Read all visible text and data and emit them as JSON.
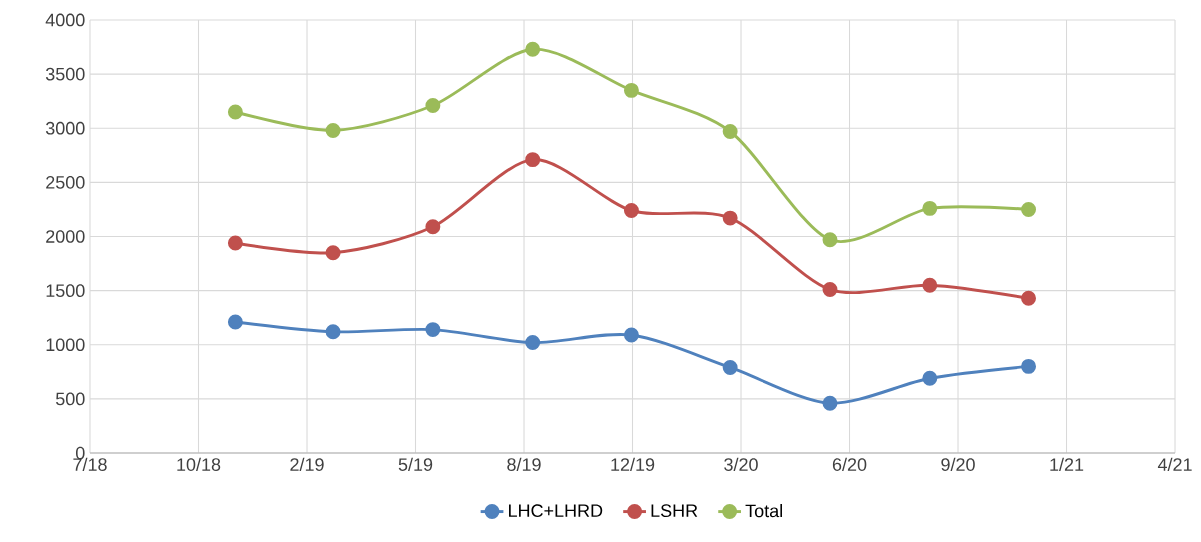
{
  "chart_data": {
    "type": "line",
    "x": [
      "2018-12-01",
      "2019-03-01",
      "2019-06-01",
      "2019-09-01",
      "2019-12-01",
      "2020-03-01",
      "2020-06-01",
      "2020-09-01",
      "2020-12-01"
    ],
    "series": [
      {
        "name": "LHC+LHRD",
        "color": "#4f81bd",
        "values": [
          1210,
          1120,
          1140,
          1020,
          1090,
          790,
          460,
          690,
          800
        ]
      },
      {
        "name": "LSHR",
        "color": "#c0504d",
        "values": [
          1940,
          1850,
          2090,
          2710,
          2240,
          2170,
          1510,
          1550,
          1430
        ]
      },
      {
        "name": "Total",
        "color": "#9bbb59",
        "values": [
          3150,
          2980,
          3210,
          3730,
          3350,
          2970,
          1970,
          2260,
          2250
        ]
      }
    ],
    "xlim": [
      "2018-07-20",
      "2021-04-15"
    ],
    "xticks": [
      {
        "value": "2018-07-20",
        "label": "7/18"
      },
      {
        "value": "2018-10-28",
        "label": "10/18"
      },
      {
        "value": "2019-02-05",
        "label": "2/19"
      },
      {
        "value": "2019-05-16",
        "label": "5/19"
      },
      {
        "value": "2019-08-24",
        "label": "8/19"
      },
      {
        "value": "2019-12-02",
        "label": "12/19"
      },
      {
        "value": "2020-03-11",
        "label": "3/20"
      },
      {
        "value": "2020-06-19",
        "label": "6/20"
      },
      {
        "value": "2020-09-27",
        "label": "9/20"
      },
      {
        "value": "2021-01-05",
        "label": "1/21"
      },
      {
        "value": "2021-04-15",
        "label": "4/21"
      }
    ],
    "ylim": [
      0,
      4000
    ],
    "yticks": [
      0,
      500,
      1000,
      1500,
      2000,
      2500,
      3000,
      3500,
      4000
    ],
    "grid": true,
    "legend": "bottom",
    "marker": "circle",
    "line_style": "solid"
  }
}
